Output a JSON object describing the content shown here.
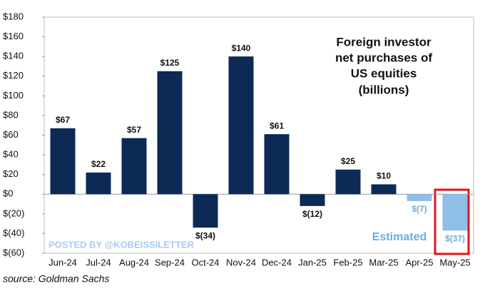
{
  "chart_data": {
    "type": "bar",
    "title": [
      "Foreign investor",
      "net purchases of",
      "US equities",
      "(billions)"
    ],
    "categories": [
      "Jun-24",
      "Jul-24",
      "Aug-24",
      "Sep-24",
      "Oct-24",
      "Nov-24",
      "Dec-24",
      "Jan-25",
      "Feb-25",
      "Mar-25",
      "Apr-25",
      "May-25"
    ],
    "values": [
      67,
      22,
      57,
      125,
      -34,
      140,
      61,
      -12,
      25,
      10,
      -7,
      -37
    ],
    "value_labels": [
      "$67",
      "$22",
      "$57",
      "$125",
      "$(34)",
      "$140",
      "$61",
      "$(12)",
      "$25",
      "$10",
      "$(7)",
      "$(37)"
    ],
    "colors": [
      "#0c2a55",
      "#0c2a55",
      "#0c2a55",
      "#0c2a55",
      "#0c2a55",
      "#0c2a55",
      "#0c2a55",
      "#0c2a55",
      "#0c2a55",
      "#0c2a55",
      "#8dbfe8",
      "#8dbfe8"
    ],
    "ylim": [
      -60,
      180
    ],
    "yticks": [
      {
        "value": -60,
        "label": "$(60)"
      },
      {
        "value": -40,
        "label": "$(40)"
      },
      {
        "value": -20,
        "label": "$(20)"
      },
      {
        "value": 0,
        "label": "$0"
      },
      {
        "value": 20,
        "label": "$20"
      },
      {
        "value": 40,
        "label": "$40"
      },
      {
        "value": 60,
        "label": "$60"
      },
      {
        "value": 80,
        "label": "$80"
      },
      {
        "value": 100,
        "label": "$100"
      },
      {
        "value": 120,
        "label": "$120"
      },
      {
        "value": 140,
        "label": "$140"
      },
      {
        "value": 160,
        "label": "$160"
      },
      {
        "value": 180,
        "label": "$180"
      }
    ],
    "grid": false,
    "annotation": "Estimated",
    "watermark": "POSTED BY @KOBEISSILETTER",
    "source": "source: Goldman Sachs"
  }
}
